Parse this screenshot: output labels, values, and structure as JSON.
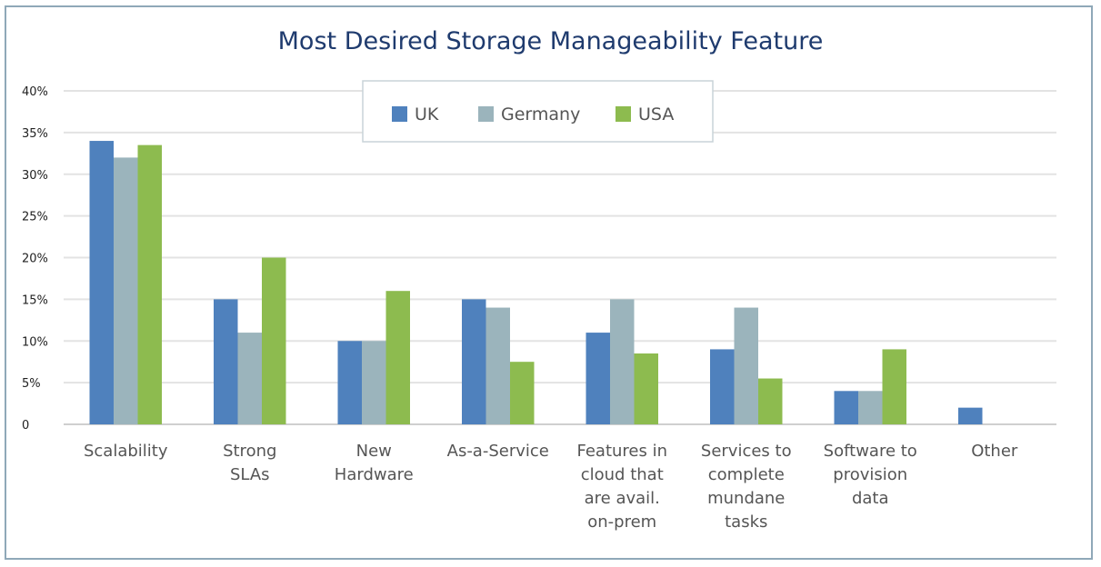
{
  "chart_data": {
    "type": "bar",
    "title": "Most Desired Storage Manageability Feature",
    "xlabel": "",
    "ylabel": "",
    "ylim": [
      0,
      40
    ],
    "yticks": [
      {
        "value": 0,
        "label": "0"
      },
      {
        "value": 5,
        "label": "5%"
      },
      {
        "value": 10,
        "label": "10%"
      },
      {
        "value": 15,
        "label": "15%"
      },
      {
        "value": 20,
        "label": "20%"
      },
      {
        "value": 25,
        "label": "25%"
      },
      {
        "value": 30,
        "label": "30%"
      },
      {
        "value": 35,
        "label": "35%"
      },
      {
        "value": 40,
        "label": "40%"
      }
    ],
    "grid": true,
    "legend_position": "top-center",
    "categories": [
      [
        "Scalability"
      ],
      [
        "Strong",
        "SLAs"
      ],
      [
        "New",
        "Hardware"
      ],
      [
        "As-a-Service"
      ],
      [
        "Features in",
        "cloud that",
        "are avail.",
        "on-prem"
      ],
      [
        "Services to",
        "complete",
        "mundane",
        "tasks"
      ],
      [
        "Software to",
        "provision",
        "data"
      ],
      [
        "Other"
      ]
    ],
    "series": [
      {
        "name": "UK",
        "color": "#4f81bd",
        "values": [
          34,
          15,
          10,
          15,
          11,
          9,
          4,
          2
        ]
      },
      {
        "name": "Germany",
        "color": "#9bb4bc",
        "values": [
          32,
          11,
          10,
          14,
          15,
          14,
          4,
          0
        ]
      },
      {
        "name": "USA",
        "color": "#8dbb4f",
        "values": [
          33.5,
          20,
          16,
          7.5,
          8.5,
          5.5,
          9,
          0
        ]
      }
    ]
  }
}
